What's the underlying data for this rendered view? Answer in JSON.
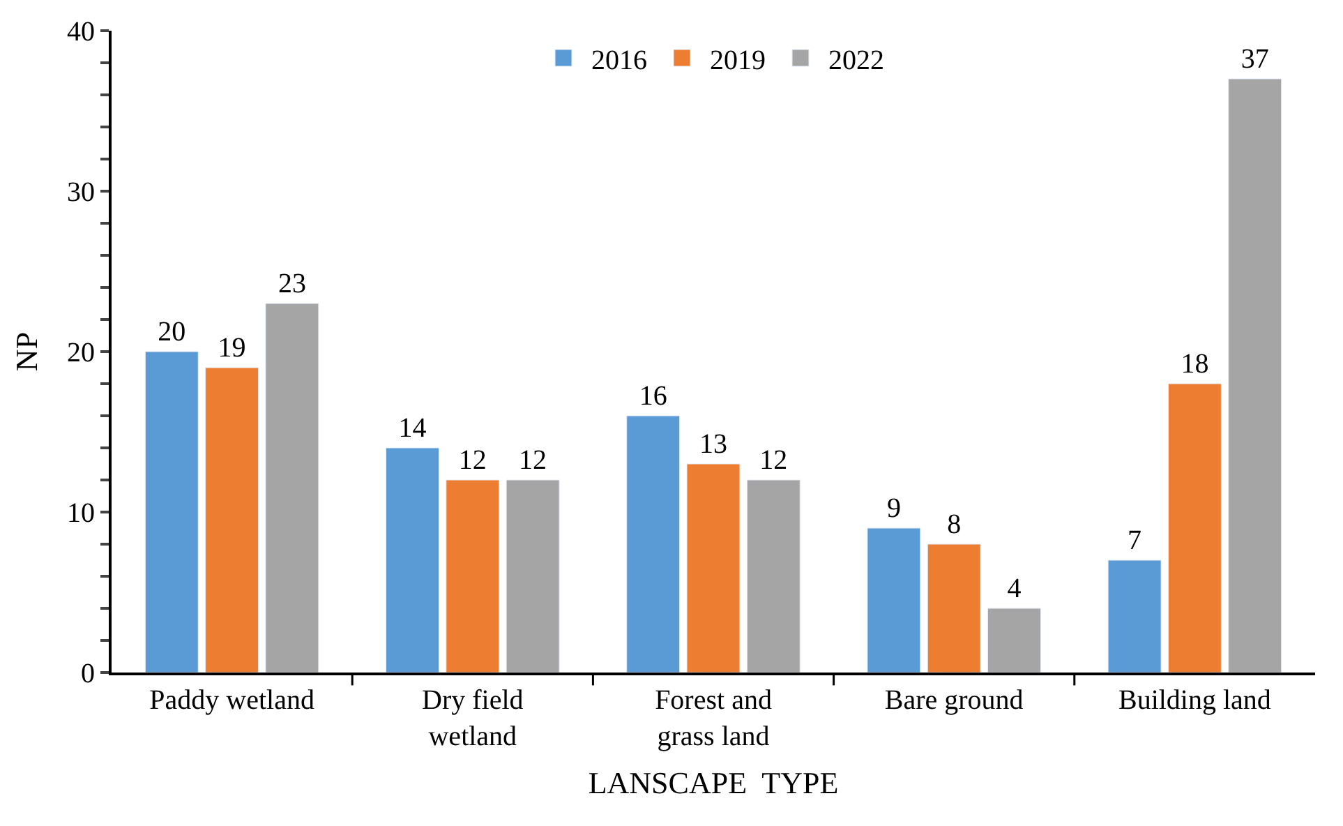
{
  "chart_data": {
    "type": "bar",
    "xlabel": "LANSCAPE  TYPE",
    "ylabel": "NP",
    "categories": [
      "Paddy wetland",
      "Dry field\nwetland",
      "Forest and\ngrass land",
      "Bare ground",
      "Building land"
    ],
    "series": [
      {
        "name": "2016",
        "color": "#5b9bd5",
        "values": [
          20,
          14,
          16,
          9,
          7
        ]
      },
      {
        "name": "2019",
        "color": "#ed7d31",
        "values": [
          19,
          12,
          13,
          8,
          18
        ]
      },
      {
        "name": "2022",
        "color": "#a5a5a5",
        "values": [
          23,
          12,
          12,
          4,
          37
        ]
      }
    ],
    "ylim": [
      0,
      40
    ],
    "yticks": [
      0,
      {
        "value": 2,
        "label": null
      },
      {
        "value": 4,
        "label": null
      },
      {
        "value": 6,
        "label": null
      },
      {
        "value": 8,
        "label": null
      },
      10,
      {
        "value": 12,
        "label": null
      },
      {
        "value": 14,
        "label": null
      },
      {
        "value": 16,
        "label": null
      },
      {
        "value": 18,
        "label": null
      },
      20,
      {
        "value": 22,
        "label": null
      },
      {
        "value": 24,
        "label": null
      },
      {
        "value": 26,
        "label": null
      },
      {
        "value": 28,
        "label": null
      },
      30,
      {
        "value": 32,
        "label": null
      },
      {
        "value": 34,
        "label": null
      },
      {
        "value": 36,
        "label": null
      },
      {
        "value": 38,
        "label": null
      },
      40
    ],
    "data_labels": true,
    "legend": "top"
  }
}
